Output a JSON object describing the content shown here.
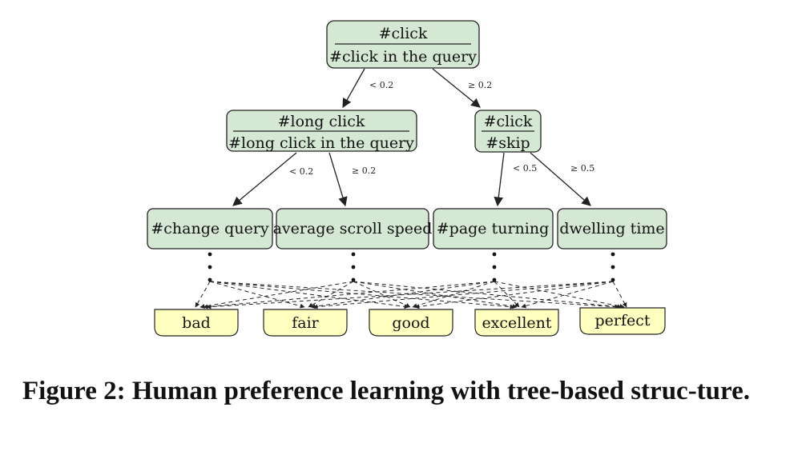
{
  "nodes": {
    "root": {
      "numerator": "#click",
      "denominator": "#click in the query"
    },
    "long": {
      "numerator": "#long click",
      "denominator": "#long click in the query"
    },
    "skip": {
      "numerator": "#click",
      "denominator": "#skip"
    },
    "features": [
      "#change query",
      "average scroll speed",
      "#page turning",
      "dwelling time"
    ]
  },
  "edges": {
    "root_left": "< 0.2",
    "root_right": "≥ 0.2",
    "long_left": "< 0.2",
    "long_right": "≥ 0.2",
    "skip_left": "< 0.5",
    "skip_right": "≥ 0.5"
  },
  "labels": [
    "bad",
    "fair",
    "good",
    "excellent",
    "perfect"
  ],
  "caption": "Figure 2: Human preference learning with tree-based struc-ture.",
  "colors": {
    "node_fill": "#d5e8d4",
    "label_fill": "#ffffc0",
    "stroke": "#222222"
  }
}
